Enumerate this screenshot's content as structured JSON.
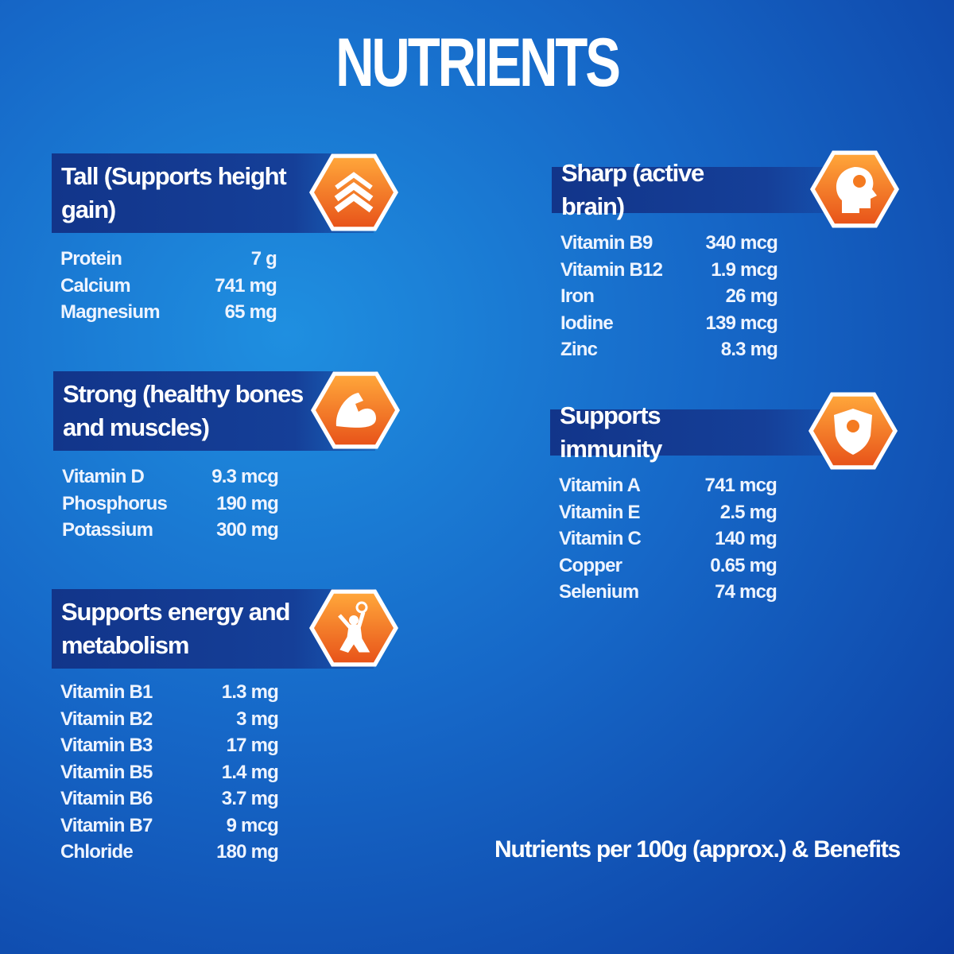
{
  "title": "NUTRIENTS",
  "sections": [
    {
      "heading": "Tall (Supports height gain)",
      "rows": [
        [
          "Protein",
          "7 g"
        ],
        [
          "Calcium",
          "741 mg"
        ],
        [
          "Magnesium",
          "65 mg"
        ]
      ]
    },
    {
      "heading": "Strong (healthy bones and muscles)",
      "rows": [
        [
          "Vitamin D",
          "9.3 mcg"
        ],
        [
          "Phosphorus",
          "190 mg"
        ],
        [
          "Potassium",
          "300 mg"
        ]
      ]
    },
    {
      "heading": "Supports energy and metabolism",
      "rows": [
        [
          "Vitamin B1",
          "1.3 mg"
        ],
        [
          "Vitamin B2",
          "3 mg"
        ],
        [
          "Vitamin B3",
          "17 mg"
        ],
        [
          "Vitamin B5",
          "1.4 mg"
        ],
        [
          "Vitamin B6",
          "3.7 mg"
        ],
        [
          "Vitamin B7",
          "9 mcg"
        ],
        [
          "Chloride",
          "180 mg"
        ]
      ]
    },
    {
      "heading": "Sharp (active brain)",
      "rows": [
        [
          "Vitamin B9",
          "340 mcg"
        ],
        [
          "Vitamin B12",
          "1.9 mcg"
        ],
        [
          "Iron",
          "26 mg"
        ],
        [
          "Iodine",
          "139 mcg"
        ],
        [
          "Zinc",
          "8.3 mg"
        ]
      ]
    },
    {
      "heading": "Supports immunity",
      "rows": [
        [
          "Vitamin A",
          "741 mcg"
        ],
        [
          "Vitamin E",
          "2.5 mg"
        ],
        [
          "Vitamin C",
          "140 mg"
        ],
        [
          "Copper",
          "0.65 mg"
        ],
        [
          "Selenium",
          "74 mcg"
        ]
      ]
    }
  ],
  "footer": "Nutrients per 100g (approx.) & Benefits"
}
